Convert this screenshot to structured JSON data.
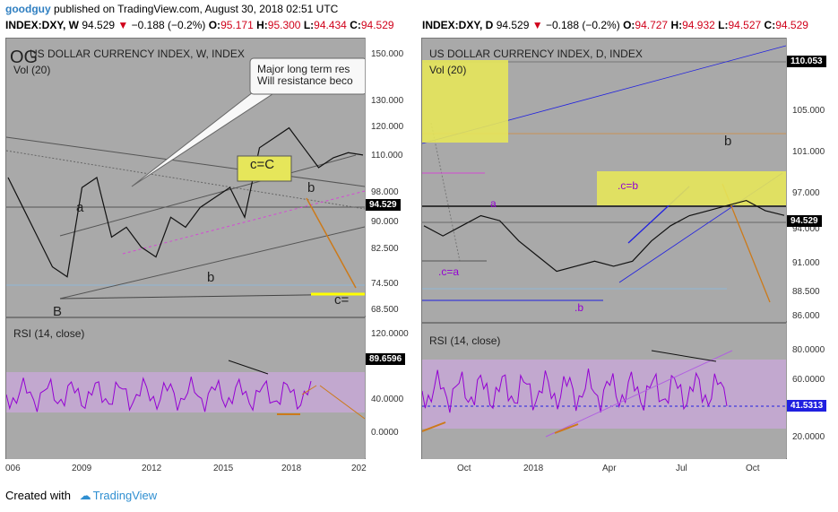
{
  "header": {
    "author": "goodguy",
    "published": "published on TradingView.com, August 30, 2018 02:51 UTC"
  },
  "symbols": [
    {
      "symbol": "INDEX:DXY, W",
      "price": "94.529",
      "change": "−0.188 (−0.2%)",
      "o_label": "O:",
      "o": "95.171",
      "h_label": "H:",
      "h": "95.300",
      "l_label": "L:",
      "l": "94.434",
      "c_label": "C:",
      "c": "94.529"
    },
    {
      "symbol": "INDEX:DXY, D",
      "price": "94.529",
      "change": "−0.188 (−0.2%)",
      "o_label": "O:",
      "o": "94.727",
      "h_label": "H:",
      "h": "94.932",
      "l_label": "L:",
      "l": "94.527",
      "c_label": "C:",
      "c": "94.529"
    }
  ],
  "left": {
    "big_label": "OG",
    "title": "US DOLLAR CURRENCY INDEX, W, INDEX",
    "vol": "Vol (20)",
    "callout": [
      "Major long term res",
      "Will resistance beco"
    ],
    "box_label": "c=C",
    "wave_labels": [
      "a",
      "b",
      "b",
      "B",
      "c="
    ],
    "price_ticks": [
      "150.000",
      "130.000",
      "120.000",
      "110.000",
      "98.000",
      "90.000",
      "82.500",
      "74.500",
      "68.500"
    ],
    "last_price": "94.529",
    "rsi_title": "RSI (14, close)",
    "rsi_ticks": [
      "120.0000",
      "80.0000",
      "40.0000",
      "0.0000"
    ],
    "rsi_last": "89.6596",
    "time_ticks": [
      "006",
      "2009",
      "2012",
      "2015",
      "2018",
      "202"
    ]
  },
  "right": {
    "title": "US DOLLAR CURRENCY INDEX, D, INDEX",
    "vol": "Vol (20)",
    "box_label": ".c=b",
    "wave_labels": [
      "a",
      ".c=a",
      ".b",
      "b"
    ],
    "price_ticks": [
      "110.053",
      "105.000",
      "101.000",
      "97.000",
      "94.000",
      "91.000",
      "88.500",
      "86.000"
    ],
    "last_price": "94.529",
    "rsi_title": "RSI (14, close)",
    "rsi_ticks": [
      "80.0000",
      "60.0000",
      "20.0000"
    ],
    "rsi_last": "41.5313",
    "time_ticks": [
      "Oct",
      "2018",
      "Apr",
      "Jul",
      "Oct"
    ]
  },
  "footer": {
    "created": "Created with",
    "brand": "TradingView"
  },
  "colors": {
    "panel": "#a9a9a9",
    "rsi_band": "#c8a8d8",
    "rsi_line": "#9400d3",
    "yellow_box": "#e6e65a",
    "trend_orange": "#cc7a1a",
    "blue": "#2020e0"
  },
  "chart_data": [
    {
      "type": "line",
      "title": "US DOLLAR CURRENCY INDEX, W, INDEX",
      "xlabel": "",
      "ylabel": "",
      "x_ticks": [
        "006",
        "2009",
        "2012",
        "2015",
        "2018",
        "202"
      ],
      "y_ticks": [
        150,
        130,
        120,
        110,
        98,
        90,
        82.5,
        74.5,
        68.5
      ],
      "last_value": 94.529,
      "series": [
        {
          "values": [
            90,
            84,
            78,
            72,
            70,
            88,
            90,
            78,
            80,
            76,
            74,
            82,
            80,
            84,
            86,
            88,
            82,
            96,
            98,
            100,
            96,
            92,
            94,
            95,
            94.529
          ]
        }
      ]
    },
    {
      "type": "line",
      "title": "US DOLLAR CURRENCY INDEX, D, INDEX",
      "xlabel": "",
      "ylabel": "",
      "x_ticks": [
        "Oct",
        "2018",
        "Apr",
        "Jul",
        "Oct"
      ],
      "y_ticks": [
        110.053,
        105,
        101,
        97,
        94,
        91,
        88.5,
        86
      ],
      "last_value": 94.529,
      "series": [
        {
          "values": [
            93.5,
            92.5,
            93.5,
            94.5,
            94,
            92,
            90.5,
            89,
            89.5,
            90,
            89.5,
            90,
            92,
            93.5,
            94.5,
            95,
            95.5,
            96,
            95,
            94.529
          ]
        }
      ]
    },
    {
      "type": "line",
      "title": "RSI (14, close)",
      "y_ticks": [
        120,
        80,
        40,
        0
      ],
      "last_value": 89.6596
    },
    {
      "type": "line",
      "title": "RSI (14, close)",
      "y_ticks": [
        80,
        60,
        20
      ],
      "last_value": 41.5313
    }
  ]
}
